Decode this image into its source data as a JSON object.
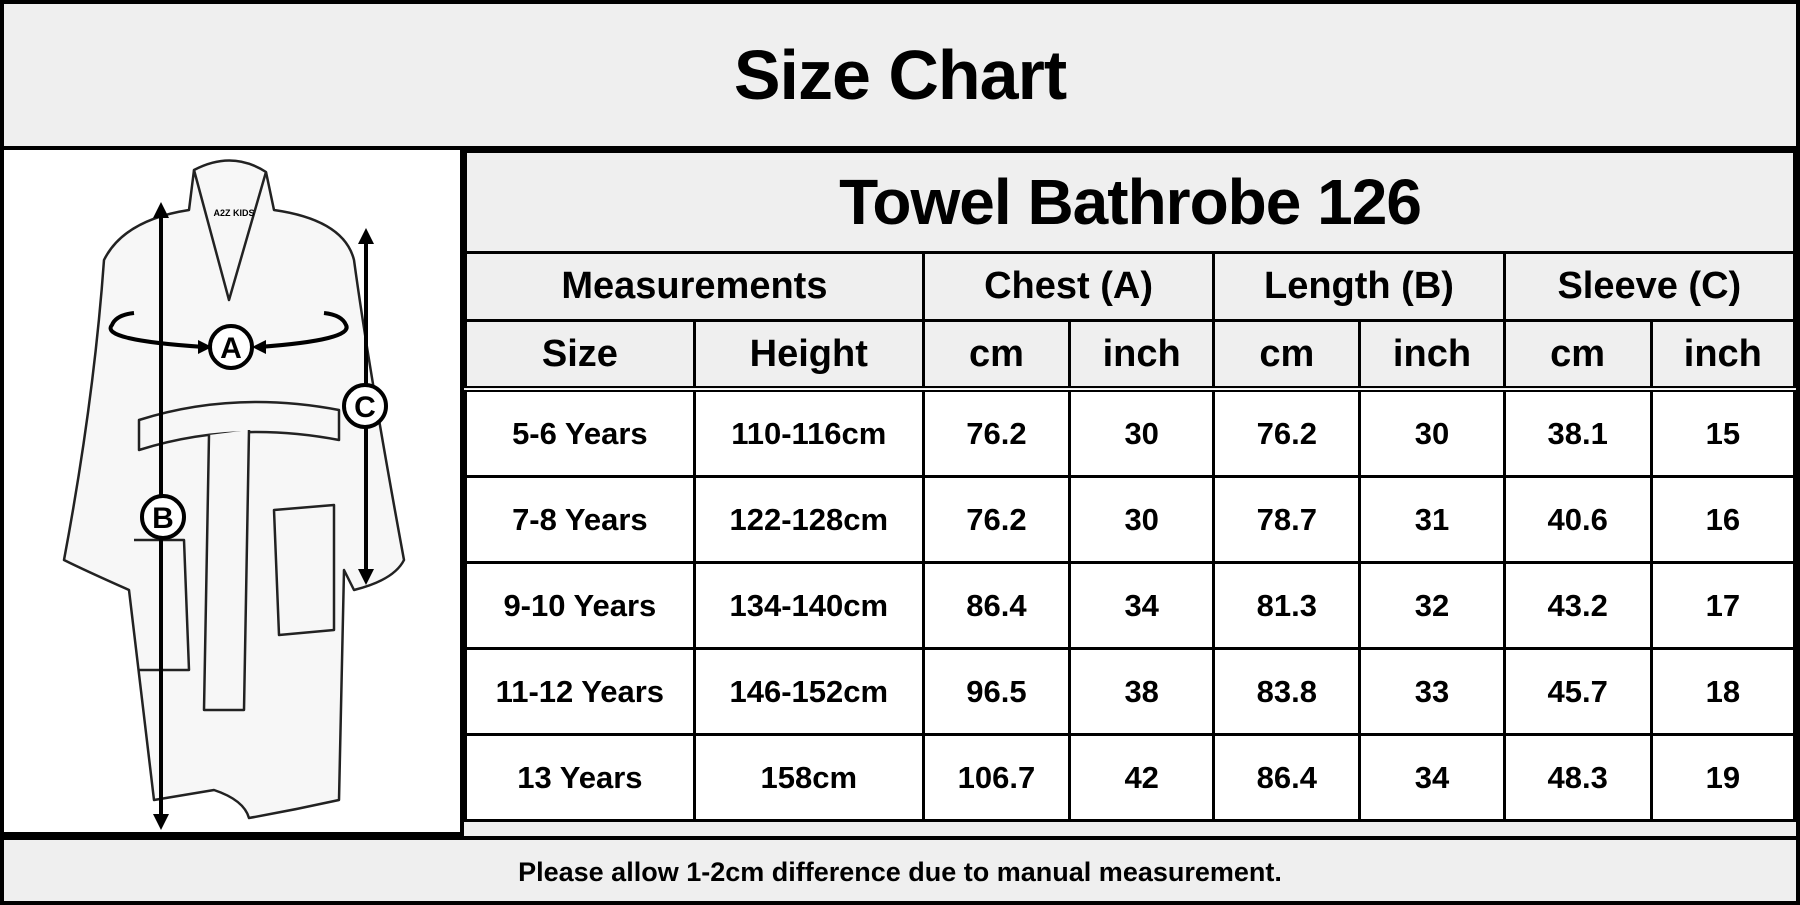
{
  "title": "Size Chart",
  "diagram": {
    "labels": [
      "A",
      "B",
      "C"
    ],
    "logo_text": "A2Z KIDS"
  },
  "chart_data": {
    "type": "table",
    "title": "Towel Bathrobe 126",
    "group_headers": [
      "Measurements",
      "Chest (A)",
      "Length (B)",
      "Sleeve (C)"
    ],
    "column_headers": [
      "Size",
      "Height",
      "cm",
      "inch",
      "cm",
      "inch",
      "cm",
      "inch"
    ],
    "rows": [
      [
        "5-6 Years",
        "110-116cm",
        "76.2",
        "30",
        "76.2",
        "30",
        "38.1",
        "15"
      ],
      [
        "7-8 Years",
        "122-128cm",
        "76.2",
        "30",
        "78.7",
        "31",
        "40.6",
        "16"
      ],
      [
        "9-10 Years",
        "134-140cm",
        "86.4",
        "34",
        "81.3",
        "32",
        "43.2",
        "17"
      ],
      [
        "11-12 Years",
        "146-152cm",
        "96.5",
        "38",
        "83.8",
        "33",
        "45.7",
        "18"
      ],
      [
        "13 Years",
        "158cm",
        "106.7",
        "42",
        "86.4",
        "34",
        "48.3",
        "19"
      ]
    ]
  },
  "footer": "Please allow 1-2cm difference due to manual measurement.",
  "colors": {
    "header_bg": "#efefef",
    "border": "#000000",
    "cell_bg": "#ffffff"
  }
}
